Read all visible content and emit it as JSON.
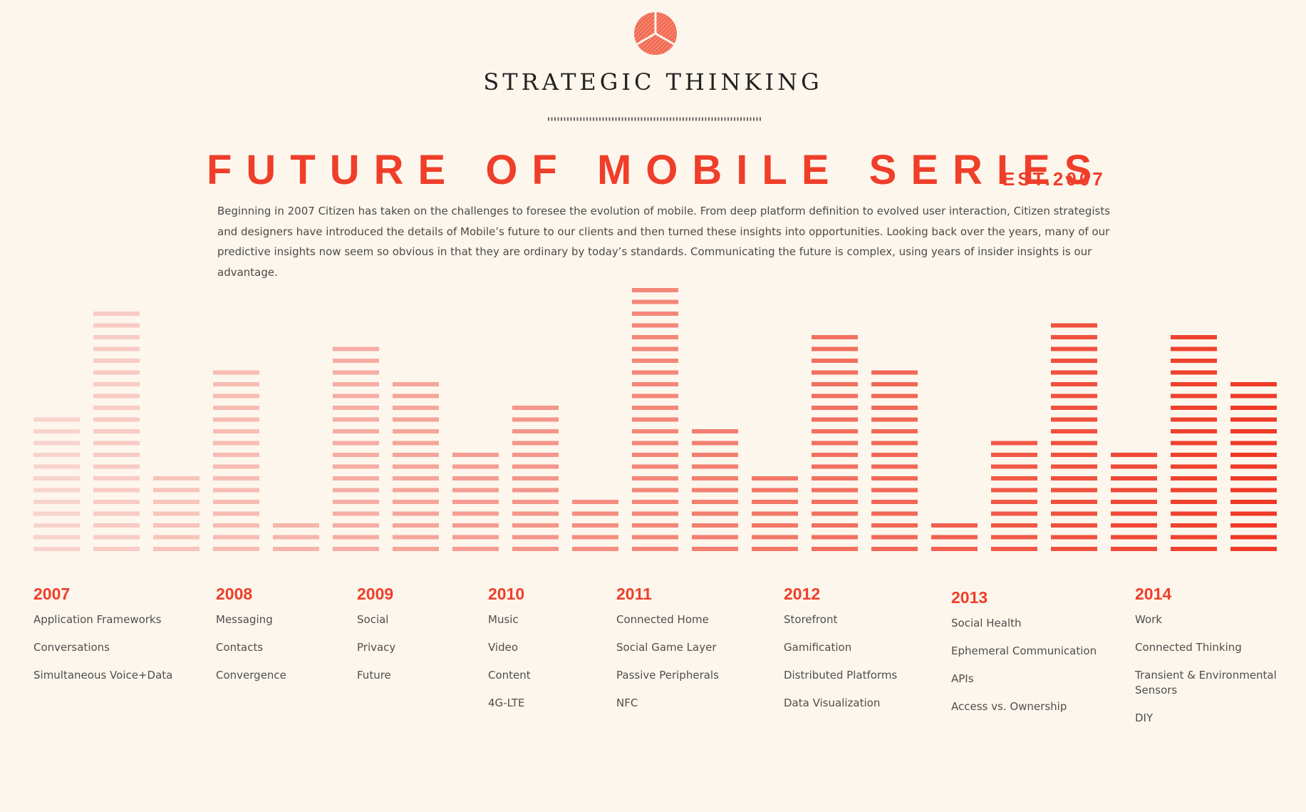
{
  "header": {
    "title": "STRATEGIC THINKING"
  },
  "main": {
    "title": "FUTURE OF MOBILE SERIES",
    "est": "EST.2007",
    "intro": "Beginning in 2007 Citizen has taken on the challenges to foresee the evolution of mobile. From deep platform definition to evolved user interaction, Citizen strategists and designers have introduced the details of Mobile’s future to our clients and then turned these insights into opportunities. Looking back over the years, many of our predictive insights now seem so obvious in that they are ordinary by today’s standards. Communicating the future is complex, using years of insider insights is our advantage."
  },
  "bars": [
    12,
    21,
    7,
    16,
    3,
    18,
    15,
    9,
    13,
    5,
    23,
    11,
    7,
    19,
    16,
    3,
    10,
    20,
    9,
    19,
    15
  ],
  "timeline": [
    {
      "year": "2007",
      "items": [
        "Application Frameworks",
        "Conversations",
        "Simultaneous Voice+Data"
      ]
    },
    {
      "year": "2008",
      "items": [
        "Messaging",
        "Contacts",
        "Convergence"
      ]
    },
    {
      "year": "2009",
      "items": [
        "Social",
        "Privacy",
        "Future"
      ]
    },
    {
      "year": "2010",
      "items": [
        "Music",
        "Video",
        "Content",
        "4G-LTE"
      ]
    },
    {
      "year": "2011",
      "items": [
        "Connected Home",
        "Social Game Layer",
        "Passive Peripherals",
        "NFC"
      ]
    },
    {
      "year": "2012",
      "items": [
        "Storefront",
        "Gamification",
        "Distributed Platforms",
        "Data Visualization"
      ]
    },
    {
      "year": "2013",
      "items": [
        "Social Health",
        "Ephemeral Communication",
        "APIs",
        "Access vs. Ownership"
      ]
    },
    {
      "year": "2014",
      "items": [
        "Work",
        "Connected Thinking",
        "Transient & Environmental Sensors",
        "DIY"
      ]
    }
  ]
}
